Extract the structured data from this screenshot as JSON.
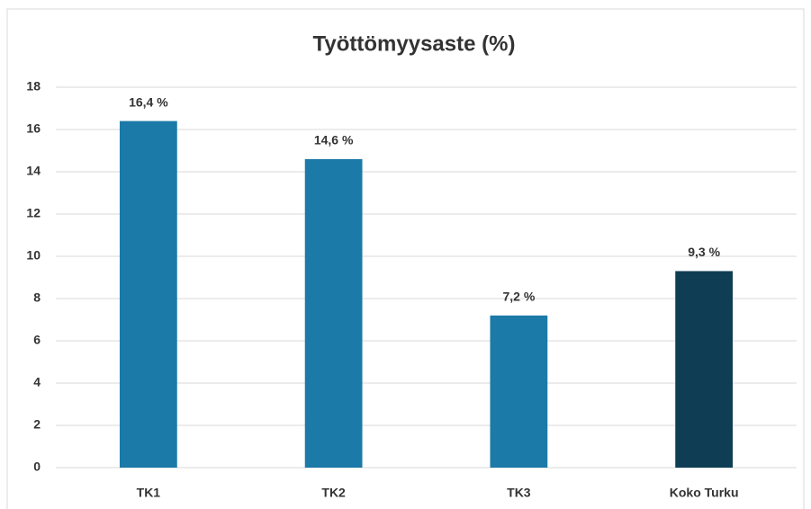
{
  "chart_data": {
    "type": "bar",
    "title": "Työttömyysaste (%)",
    "categories": [
      "TK1",
      "TK2",
      "TK3",
      "Koko Turku"
    ],
    "values": [
      16.4,
      14.6,
      7.2,
      9.3
    ],
    "value_labels": [
      "16,4 %",
      "14,6 %",
      "7,2 %",
      "9,3 %"
    ],
    "colors": [
      "#1b7aa8",
      "#1b7aa8",
      "#1b7aa8",
      "#0f3e54"
    ],
    "ylim": [
      0,
      18
    ],
    "yticks": [
      0,
      2,
      4,
      6,
      8,
      10,
      12,
      14,
      16,
      18
    ],
    "grid": true
  }
}
